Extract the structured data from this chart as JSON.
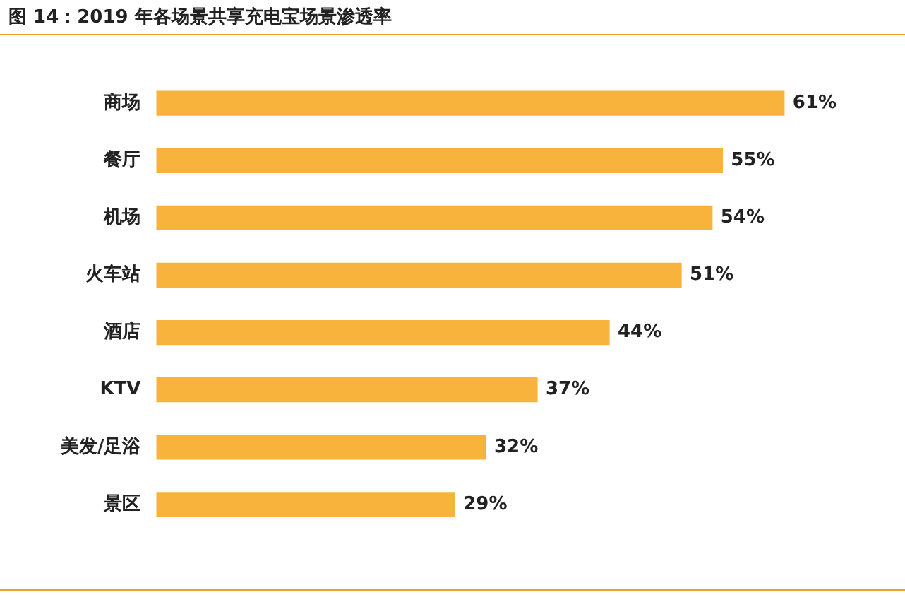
{
  "chart_data": {
    "type": "bar",
    "orientation": "horizontal",
    "title": "图 14：2019 年各场景共享充电宝场景渗透率",
    "categories": [
      "商场",
      "餐厅",
      "机场",
      "火车站",
      "酒店",
      "KTV",
      "美发/足浴",
      "景区"
    ],
    "values": [
      61,
      55,
      54,
      51,
      44,
      37,
      32,
      29
    ],
    "value_labels": [
      "61%",
      "55%",
      "54%",
      "51%",
      "44%",
      "37%",
      "32%",
      "29%"
    ],
    "color": "#f8b33c"
  }
}
